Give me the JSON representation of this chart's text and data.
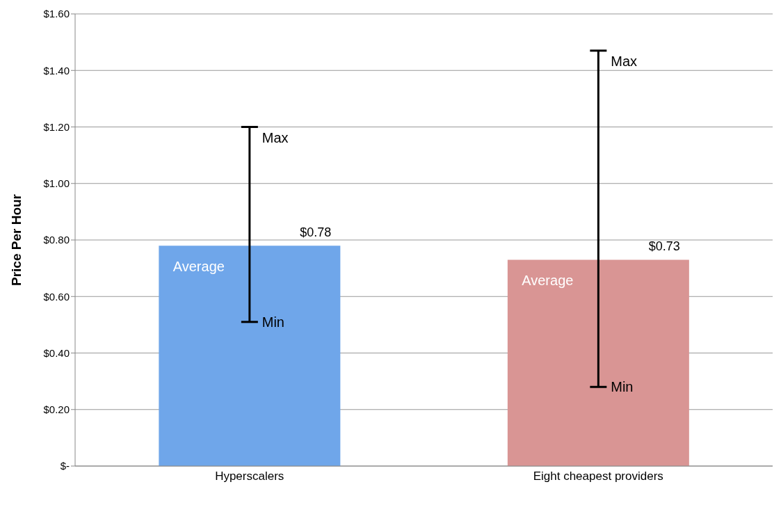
{
  "chart_data": {
    "type": "bar",
    "ylabel": "Price Per Hour",
    "categories": [
      "Hyperscalers",
      "Eight cheapest providers"
    ],
    "values": [
      0.78,
      0.73
    ],
    "colors": [
      "#6fa6ea",
      "#d99594"
    ],
    "errors": [
      [
        0.51,
        1.2
      ],
      [
        0.28,
        1.47
      ]
    ],
    "value_labels": [
      "$0.78",
      "$0.73"
    ],
    "ylim": [
      0,
      1.6
    ],
    "yticks": [
      {
        "value": 0,
        "label": "$-"
      },
      {
        "value": 0.2,
        "label": "$0.20"
      },
      {
        "value": 0.4,
        "label": "$0.40"
      },
      {
        "value": 0.6,
        "label": "$0.60"
      },
      {
        "value": 0.8,
        "label": "$0.80"
      },
      {
        "value": 1.0,
        "label": "$1.00"
      },
      {
        "value": 1.2,
        "label": "$1.20"
      },
      {
        "value": 1.4,
        "label": "$1.40"
      },
      {
        "value": 1.6,
        "label": "$1.60"
      }
    ],
    "grid": "y",
    "legend": false,
    "annotations": [
      {
        "text": "Max",
        "x": "Hyperscalers",
        "y": 1.2
      },
      {
        "text": "Min",
        "x": "Hyperscalers",
        "y": 0.51
      },
      {
        "text": "Average",
        "x": "Hyperscalers",
        "y": 0.71
      },
      {
        "text": "Max",
        "x": "Eight cheapest providers",
        "y": 1.47
      },
      {
        "text": "Min",
        "x": "Eight cheapest providers",
        "y": 0.28
      },
      {
        "text": "Average",
        "x": "Eight cheapest providers",
        "y": 0.66
      }
    ]
  }
}
